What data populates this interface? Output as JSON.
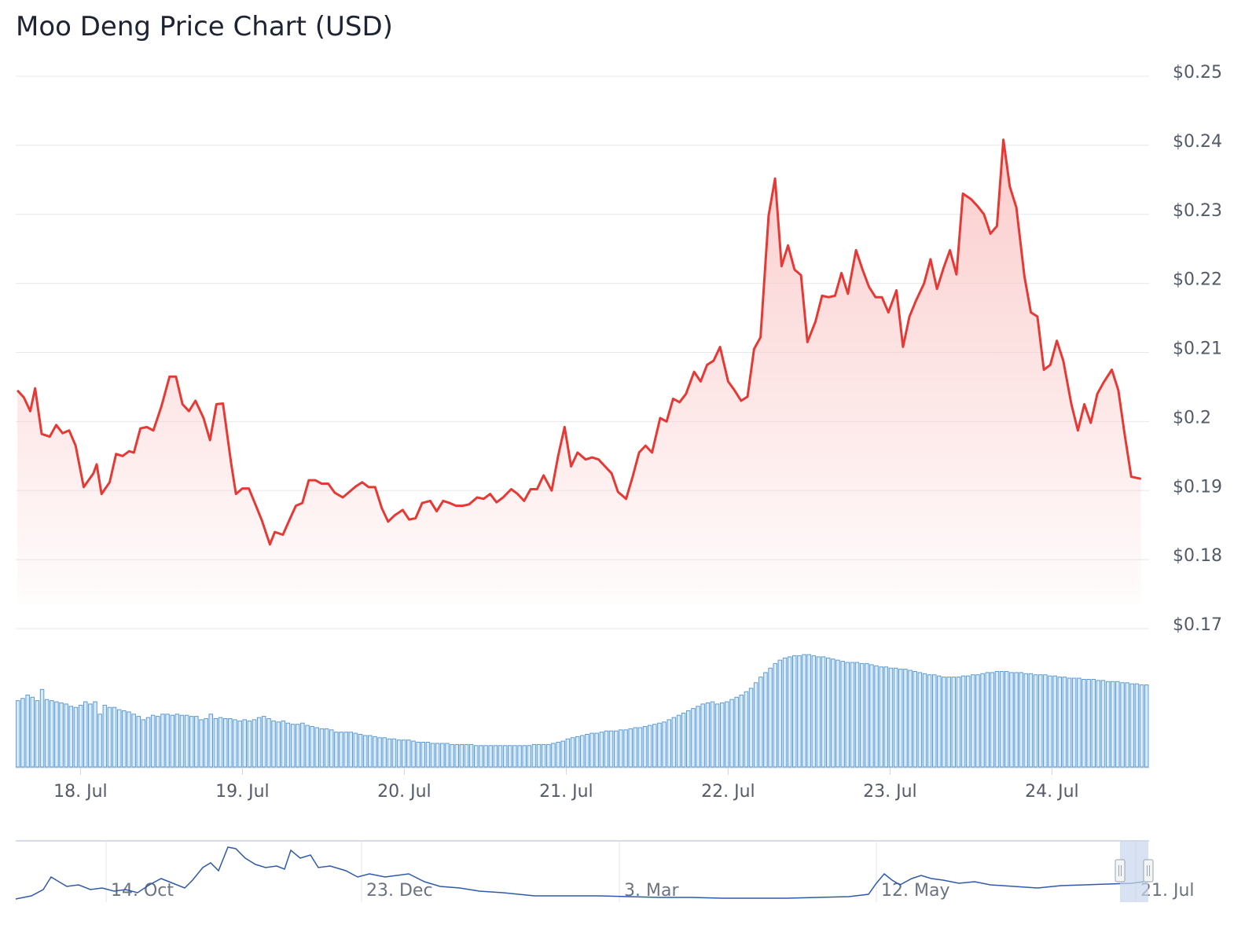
{
  "chart_data": {
    "type": "line",
    "title": "Moo Deng Price Chart (USD)",
    "colors": {
      "line": "#e53935",
      "fill_top": "#fbcaca",
      "grid": "#e6e8ec",
      "volume_fill": "#d7eaf6",
      "volume_stroke": "#5b9bd5",
      "navigator_line": "#2e5aa8",
      "navigator_border": "#c5d0e6",
      "navigator_window": "#c9d6ec"
    },
    "y_axis": {
      "min": 0.17,
      "max": 0.25,
      "ticks": [
        0.25,
        0.24,
        0.23,
        0.22,
        0.21,
        0.2,
        0.19,
        0.18,
        0.17
      ],
      "tick_labels": [
        "$0.25",
        "$0.24",
        "$0.23",
        "$0.22",
        "$0.21",
        "$0.2",
        "$0.19",
        "$0.18",
        "$0.17"
      ],
      "position": "right"
    },
    "x_axis": {
      "min": 17.6,
      "max": 24.6,
      "ticks": [
        18,
        19,
        20,
        21,
        22,
        23,
        24
      ],
      "tick_labels": [
        "18. Jul",
        "19. Jul",
        "20. Jul",
        "21. Jul",
        "22. Jul",
        "23. Jul",
        "24. Jul"
      ]
    },
    "series": [
      {
        "name": "Price",
        "x_unit": "day of July",
        "points": [
          [
            17.61,
            0.2045
          ],
          [
            17.65,
            0.2035
          ],
          [
            17.69,
            0.2015
          ],
          [
            17.72,
            0.2048
          ],
          [
            17.76,
            0.1982
          ],
          [
            17.81,
            0.1978
          ],
          [
            17.85,
            0.1995
          ],
          [
            17.89,
            0.1983
          ],
          [
            17.93,
            0.1987
          ],
          [
            17.97,
            0.1965
          ],
          [
            18.02,
            0.1905
          ],
          [
            18.08,
            0.1925
          ],
          [
            18.1,
            0.1938
          ],
          [
            18.13,
            0.1895
          ],
          [
            18.18,
            0.1912
          ],
          [
            18.22,
            0.1953
          ],
          [
            18.26,
            0.195
          ],
          [
            18.3,
            0.1957
          ],
          [
            18.33,
            0.1955
          ],
          [
            18.37,
            0.199
          ],
          [
            18.41,
            0.1992
          ],
          [
            18.45,
            0.1987
          ],
          [
            18.5,
            0.2022
          ],
          [
            18.55,
            0.2065
          ],
          [
            18.59,
            0.2065
          ],
          [
            18.63,
            0.2025
          ],
          [
            18.67,
            0.2015
          ],
          [
            18.71,
            0.203
          ],
          [
            18.76,
            0.2005
          ],
          [
            18.8,
            0.1973
          ],
          [
            18.84,
            0.2025
          ],
          [
            18.88,
            0.2026
          ],
          [
            18.93,
            0.194
          ],
          [
            18.96,
            0.1895
          ],
          [
            19.0,
            0.1903
          ],
          [
            19.04,
            0.1903
          ],
          [
            19.08,
            0.188
          ],
          [
            19.12,
            0.1857
          ],
          [
            19.17,
            0.1822
          ],
          [
            19.2,
            0.184
          ],
          [
            19.25,
            0.1836
          ],
          [
            19.29,
            0.1857
          ],
          [
            19.33,
            0.1878
          ],
          [
            19.37,
            0.1882
          ],
          [
            19.41,
            0.1915
          ],
          [
            19.45,
            0.1915
          ],
          [
            19.49,
            0.191
          ],
          [
            19.53,
            0.191
          ],
          [
            19.57,
            0.1897
          ],
          [
            19.62,
            0.189
          ],
          [
            19.66,
            0.1898
          ],
          [
            19.7,
            0.1906
          ],
          [
            19.74,
            0.1912
          ],
          [
            19.78,
            0.1905
          ],
          [
            19.82,
            0.1905
          ],
          [
            19.86,
            0.1875
          ],
          [
            19.9,
            0.1855
          ],
          [
            19.94,
            0.1864
          ],
          [
            19.99,
            0.1872
          ],
          [
            20.03,
            0.1858
          ],
          [
            20.07,
            0.186
          ],
          [
            20.11,
            0.1882
          ],
          [
            20.16,
            0.1885
          ],
          [
            20.2,
            0.187
          ],
          [
            20.24,
            0.1885
          ],
          [
            20.28,
            0.1882
          ],
          [
            20.32,
            0.1878
          ],
          [
            20.36,
            0.1878
          ],
          [
            20.4,
            0.188
          ],
          [
            20.45,
            0.189
          ],
          [
            20.49,
            0.1888
          ],
          [
            20.53,
            0.1895
          ],
          [
            20.57,
            0.1883
          ],
          [
            20.61,
            0.189
          ],
          [
            20.66,
            0.1902
          ],
          [
            20.7,
            0.1895
          ],
          [
            20.74,
            0.1885
          ],
          [
            20.78,
            0.1902
          ],
          [
            20.82,
            0.1902
          ],
          [
            20.86,
            0.1922
          ],
          [
            20.91,
            0.19
          ],
          [
            20.95,
            0.195
          ],
          [
            20.99,
            0.1992
          ],
          [
            21.03,
            0.1935
          ],
          [
            21.07,
            0.1955
          ],
          [
            21.12,
            0.1945
          ],
          [
            21.16,
            0.1948
          ],
          [
            21.2,
            0.1945
          ],
          [
            21.24,
            0.1935
          ],
          [
            21.28,
            0.1925
          ],
          [
            21.32,
            0.1898
          ],
          [
            21.37,
            0.1888
          ],
          [
            21.41,
            0.192
          ],
          [
            21.45,
            0.1955
          ],
          [
            21.49,
            0.1965
          ],
          [
            21.53,
            0.1955
          ],
          [
            21.58,
            0.2005
          ],
          [
            21.62,
            0.2
          ],
          [
            21.66,
            0.2033
          ],
          [
            21.7,
            0.2028
          ],
          [
            21.74,
            0.204
          ],
          [
            21.79,
            0.2072
          ],
          [
            21.83,
            0.2058
          ],
          [
            21.87,
            0.2082
          ],
          [
            21.91,
            0.2088
          ],
          [
            21.95,
            0.2108
          ],
          [
            22.0,
            0.2058
          ],
          [
            22.04,
            0.2045
          ],
          [
            22.08,
            0.203
          ],
          [
            22.12,
            0.2036
          ],
          [
            22.16,
            0.2105
          ],
          [
            22.2,
            0.2122
          ],
          [
            22.25,
            0.2298
          ],
          [
            22.29,
            0.2352
          ],
          [
            22.33,
            0.2225
          ],
          [
            22.37,
            0.2255
          ],
          [
            22.41,
            0.222
          ],
          [
            22.45,
            0.2212
          ],
          [
            22.49,
            0.2115
          ],
          [
            22.54,
            0.2145
          ],
          [
            22.58,
            0.2182
          ],
          [
            22.62,
            0.218
          ],
          [
            22.66,
            0.2182
          ],
          [
            22.7,
            0.2215
          ],
          [
            22.74,
            0.2185
          ],
          [
            22.79,
            0.2248
          ],
          [
            22.83,
            0.222
          ],
          [
            22.87,
            0.2195
          ],
          [
            22.91,
            0.218
          ],
          [
            22.95,
            0.218
          ],
          [
            22.99,
            0.2158
          ],
          [
            23.04,
            0.219
          ],
          [
            23.08,
            0.2108
          ],
          [
            23.12,
            0.2152
          ],
          [
            23.16,
            0.2175
          ],
          [
            23.21,
            0.22
          ],
          [
            23.25,
            0.2235
          ],
          [
            23.29,
            0.2192
          ],
          [
            23.33,
            0.2222
          ],
          [
            23.37,
            0.2248
          ],
          [
            23.41,
            0.2213
          ],
          [
            23.45,
            0.233
          ],
          [
            23.5,
            0.2322
          ],
          [
            23.54,
            0.2312
          ],
          [
            23.58,
            0.23
          ],
          [
            23.62,
            0.2272
          ],
          [
            23.66,
            0.2283
          ],
          [
            23.7,
            0.2408
          ],
          [
            23.74,
            0.234
          ],
          [
            23.78,
            0.231
          ],
          [
            23.83,
            0.221
          ],
          [
            23.87,
            0.2158
          ],
          [
            23.91,
            0.2152
          ],
          [
            23.95,
            0.2075
          ],
          [
            23.99,
            0.2082
          ],
          [
            24.03,
            0.2117
          ],
          [
            24.07,
            0.2088
          ],
          [
            24.12,
            0.2025
          ],
          [
            24.16,
            0.1987
          ],
          [
            24.2,
            0.2025
          ],
          [
            24.24,
            0.1998
          ],
          [
            24.28,
            0.204
          ],
          [
            24.32,
            0.2057
          ],
          [
            24.37,
            0.2075
          ],
          [
            24.41,
            0.2045
          ],
          [
            24.45,
            0.198
          ],
          [
            24.49,
            0.192
          ],
          [
            24.55,
            0.1917
          ]
        ]
      },
      {
        "name": "Volume",
        "values": [
          59,
          61,
          64,
          62,
          59,
          69,
          60,
          59,
          58,
          57,
          56,
          54,
          53,
          55,
          58,
          56,
          58,
          47,
          55,
          53,
          53,
          51,
          50,
          49,
          47,
          45,
          42,
          44,
          46,
          45,
          47,
          47,
          46,
          47,
          46,
          46,
          45,
          45,
          42,
          43,
          47,
          43,
          44,
          43,
          43,
          42,
          41,
          42,
          41,
          42,
          44,
          45,
          43,
          41,
          40,
          41,
          39,
          38,
          38,
          39,
          37,
          36,
          35,
          34,
          34,
          33,
          31,
          31,
          31,
          31,
          30,
          29,
          28,
          28,
          27,
          26,
          26,
          25,
          25,
          24,
          24,
          24,
          23,
          22,
          22,
          22,
          21,
          21,
          21,
          21,
          20,
          20,
          20,
          20,
          20,
          19,
          19,
          19,
          19,
          19,
          19,
          19,
          19,
          19,
          19,
          19,
          19,
          20,
          20,
          20,
          20,
          21,
          22,
          23,
          25,
          26,
          27,
          28,
          29,
          30,
          30,
          31,
          32,
          32,
          32,
          33,
          33,
          34,
          35,
          35,
          36,
          37,
          38,
          39,
          40,
          42,
          44,
          46,
          48,
          50,
          52,
          54,
          56,
          57,
          58,
          56,
          57,
          58,
          60,
          62,
          64,
          67,
          70,
          75,
          80,
          84,
          88,
          92,
          95,
          97,
          98,
          99,
          99,
          100,
          100,
          99,
          98,
          98,
          97,
          96,
          95,
          94,
          93,
          93,
          93,
          92,
          92,
          91,
          90,
          89,
          89,
          88,
          88,
          87,
          87,
          86,
          85,
          84,
          83,
          82,
          82,
          81,
          80,
          80,
          80,
          80,
          81,
          81,
          82,
          82,
          83,
          84,
          84,
          85,
          85,
          85,
          84,
          84,
          84,
          83,
          83,
          82,
          82,
          82,
          81,
          81,
          80,
          80,
          79,
          79,
          79,
          78,
          78,
          78,
          77,
          77,
          76,
          76,
          76,
          75,
          75,
          74,
          74,
          73,
          73
        ]
      },
      {
        "name": "Navigator",
        "x_tick_labels": [
          "14. Oct",
          "23. Dec",
          "3. Mar",
          "12. May",
          "21. Jul"
        ]
      }
    ]
  }
}
